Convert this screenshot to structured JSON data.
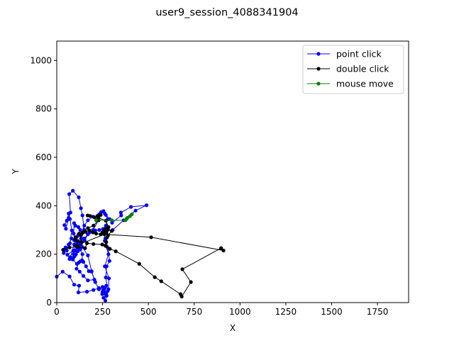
{
  "chart_data": {
    "type": "line",
    "title": "user9_session_4088341904",
    "xlabel": "X",
    "ylabel": "Y",
    "xlim": [
      0,
      1920
    ],
    "ylim": [
      0,
      1080
    ],
    "x_ticks": [
      0,
      250,
      500,
      750,
      1000,
      1250,
      1500,
      1750
    ],
    "y_ticks": [
      0,
      200,
      400,
      600,
      800,
      1000
    ],
    "grid": false,
    "legend_position": "top-right",
    "series": [
      {
        "name": "point click",
        "color": "#0000ff",
        "points": [
          [
            0,
            107
          ],
          [
            32,
            128
          ],
          [
            70,
            108
          ],
          [
            95,
            74
          ],
          [
            122,
            70
          ],
          [
            118,
            42
          ],
          [
            165,
            45
          ],
          [
            200,
            52
          ],
          [
            230,
            60
          ],
          [
            255,
            52
          ],
          [
            262,
            62
          ],
          [
            250,
            45
          ],
          [
            270,
            35
          ],
          [
            255,
            20
          ],
          [
            265,
            8
          ],
          [
            278,
            48
          ],
          [
            268,
            104
          ],
          [
            272,
            150
          ],
          [
            288,
            172
          ],
          [
            280,
            225
          ],
          [
            265,
            265
          ],
          [
            255,
            288
          ],
          [
            232,
            300
          ],
          [
            210,
            298
          ],
          [
            180,
            290
          ],
          [
            150,
            265
          ],
          [
            125,
            230
          ],
          [
            105,
            200
          ],
          [
            90,
            185
          ],
          [
            70,
            180
          ],
          [
            58,
            198
          ],
          [
            90,
            215
          ],
          [
            115,
            245
          ],
          [
            135,
            285
          ],
          [
            150,
            318
          ],
          [
            170,
            340
          ],
          [
            198,
            355
          ],
          [
            218,
            342
          ],
          [
            232,
            365
          ],
          [
            255,
            378
          ],
          [
            262,
            368
          ],
          [
            288,
            345
          ],
          [
            302,
            330
          ],
          [
            352,
            360
          ],
          [
            350,
            372
          ],
          [
            405,
            395
          ],
          [
            490,
            402
          ],
          [
            430,
            380
          ],
          [
            365,
            340
          ],
          [
            305,
            300
          ],
          [
            275,
            298
          ],
          [
            252,
            304
          ],
          [
            268,
            318
          ],
          [
            278,
            344
          ],
          [
            268,
            362
          ],
          [
            242,
            374
          ],
          [
            228,
            340
          ],
          [
            198,
            300
          ],
          [
            170,
            282
          ],
          [
            152,
            258
          ],
          [
            132,
            242
          ],
          [
            112,
            228
          ],
          [
            100,
            215
          ],
          [
            92,
            200
          ],
          [
            85,
            180
          ],
          [
            75,
            188
          ],
          [
            95,
            240
          ],
          [
            110,
            272
          ],
          [
            118,
            280
          ],
          [
            128,
            300
          ],
          [
            118,
            312
          ],
          [
            102,
            318
          ],
          [
            95,
            328
          ],
          [
            92,
            285
          ],
          [
            100,
            260
          ],
          [
            110,
            230
          ],
          [
            115,
            212
          ],
          [
            98,
            192
          ],
          [
            88,
            178
          ],
          [
            110,
            160
          ],
          [
            128,
            170
          ],
          [
            145,
            168
          ],
          [
            160,
            150
          ],
          [
            175,
            130
          ],
          [
            190,
            128
          ],
          [
            205,
            95
          ],
          [
            170,
            92
          ],
          [
            145,
            110
          ],
          [
            125,
            128
          ],
          [
            108,
            140
          ],
          [
            120,
            165
          ],
          [
            138,
            175
          ],
          [
            140,
            200
          ],
          [
            128,
            220
          ],
          [
            112,
            238
          ],
          [
            95,
            258
          ],
          [
            80,
            265
          ],
          [
            65,
            240
          ],
          [
            55,
            215
          ],
          [
            48,
            228
          ],
          [
            38,
            205
          ],
          [
            72,
            245
          ],
          [
            82,
            298
          ],
          [
            72,
            345
          ],
          [
            65,
            368
          ],
          [
            55,
            338
          ],
          [
            42,
            320
          ],
          [
            50,
            305
          ],
          [
            65,
            350
          ],
          [
            75,
            372
          ],
          [
            68,
            448
          ],
          [
            88,
            462
          ],
          [
            120,
            435
          ],
          [
            132,
            390
          ],
          [
            140,
            360
          ],
          [
            150,
            300
          ],
          [
            135,
            265
          ],
          [
            122,
            250
          ],
          [
            138,
            230
          ],
          [
            170,
            195
          ],
          [
            190,
            130
          ],
          [
            210,
            85
          ],
          [
            230,
            55
          ],
          [
            250,
            65
          ],
          [
            270,
            70
          ],
          [
            262,
            40
          ],
          [
            248,
            35
          ],
          [
            272,
            28
          ],
          [
            282,
            55
          ],
          [
            285,
            100
          ],
          [
            262,
            150
          ],
          [
            282,
            200
          ],
          [
            262,
            255
          ],
          [
            262,
            290
          ],
          [
            278,
            300
          ]
        ]
      },
      {
        "name": "double click",
        "color": "#000000",
        "points": [
          [
            35,
            218
          ],
          [
            70,
            228
          ],
          [
            115,
            230
          ],
          [
            155,
            225
          ],
          [
            165,
            245
          ],
          [
            200,
            242
          ],
          [
            248,
            240
          ],
          [
            265,
            235
          ],
          [
            280,
            278
          ],
          [
            300,
            296
          ],
          [
            280,
            302
          ],
          [
            262,
            300
          ],
          [
            250,
            290
          ],
          [
            240,
            282
          ],
          [
            215,
            285
          ],
          [
            198,
            290
          ],
          [
            178,
            298
          ],
          [
            158,
            292
          ],
          [
            140,
            288
          ],
          [
            128,
            278
          ],
          [
            102,
            270
          ],
          [
            100,
            262
          ],
          [
            112,
            255
          ],
          [
            135,
            250
          ],
          [
            122,
            285
          ],
          [
            148,
            292
          ],
          [
            170,
            308
          ],
          [
            200,
            318
          ],
          [
            228,
            340
          ],
          [
            240,
            362
          ],
          [
            222,
            358
          ],
          [
            205,
            352
          ],
          [
            182,
            358
          ],
          [
            168,
            360
          ],
          [
            228,
            350
          ],
          [
            268,
            338
          ],
          [
            282,
            312
          ],
          [
            268,
            305
          ],
          [
            270,
            288
          ],
          [
            275,
            270
          ],
          [
            270,
            250
          ],
          [
            272,
            232
          ],
          [
            290,
            222
          ],
          [
            322,
            212
          ],
          [
            450,
            160
          ],
          [
            535,
            105
          ],
          [
            570,
            88
          ],
          [
            675,
            35
          ],
          [
            682,
            25
          ],
          [
            732,
            85
          ],
          [
            685,
            138
          ],
          [
            897,
            225
          ],
          [
            910,
            215
          ],
          [
            515,
            270
          ],
          [
            260,
            282
          ],
          [
            105,
            235
          ]
        ]
      },
      {
        "name": "mouse move",
        "color": "#008000",
        "points": [
          [
            215,
            340
          ],
          [
            300,
            340
          ],
          [
            375,
            340
          ],
          [
            380,
            345
          ],
          [
            385,
            350
          ],
          [
            400,
            357
          ],
          [
            410,
            365
          ]
        ]
      }
    ]
  }
}
